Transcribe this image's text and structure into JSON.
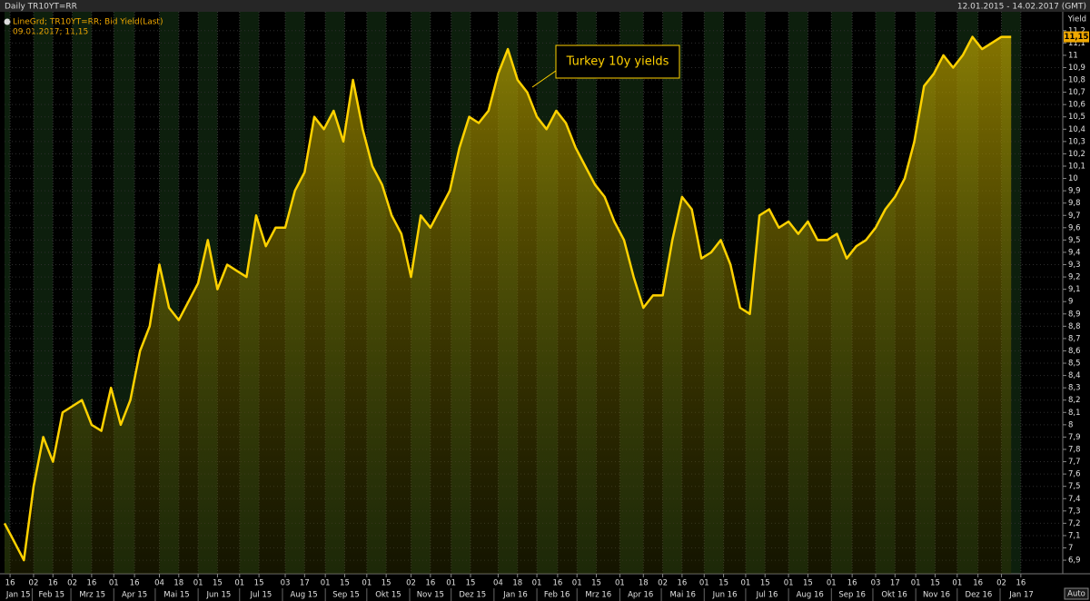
{
  "chart_data": {
    "type": "line",
    "title": "Daily TR10YT=RR",
    "date_range": "12.01.2015 - 14.02.2017 (GMT)",
    "ylabel": "Yield",
    "legend_detail": "09.01.2017; 11,15",
    "last_label": {
      "value": 11.15,
      "label": "11,15"
    },
    "annotation": "Turkey 10y yields",
    "button": "Auto",
    "xlim": [
      "2015-01-12",
      "2017-02-14"
    ],
    "ylim": [
      6.79,
      11.25
    ],
    "grid": true,
    "x": [
      "2015-01-12",
      "2015-01-19",
      "2015-01-26",
      "2015-02-02",
      "2015-02-09",
      "2015-02-16",
      "2015-02-23",
      "2015-03-02",
      "2015-03-09",
      "2015-03-16",
      "2015-03-23",
      "2015-03-30",
      "2015-04-06",
      "2015-04-13",
      "2015-04-20",
      "2015-04-27",
      "2015-05-04",
      "2015-05-11",
      "2015-05-18",
      "2015-05-25",
      "2015-06-01",
      "2015-06-08",
      "2015-06-15",
      "2015-06-22",
      "2015-06-29",
      "2015-07-06",
      "2015-07-13",
      "2015-07-20",
      "2015-07-27",
      "2015-08-03",
      "2015-08-10",
      "2015-08-17",
      "2015-08-24",
      "2015-08-31",
      "2015-09-07",
      "2015-09-14",
      "2015-09-21",
      "2015-09-28",
      "2015-10-05",
      "2015-10-12",
      "2015-10-19",
      "2015-10-26",
      "2015-11-02",
      "2015-11-09",
      "2015-11-16",
      "2015-11-23",
      "2015-11-30",
      "2015-12-07",
      "2015-12-14",
      "2015-12-21",
      "2015-12-28",
      "2016-01-04",
      "2016-01-11",
      "2016-01-18",
      "2016-01-25",
      "2016-02-01",
      "2016-02-08",
      "2016-02-15",
      "2016-02-22",
      "2016-02-29",
      "2016-03-07",
      "2016-03-14",
      "2016-03-21",
      "2016-03-28",
      "2016-04-04",
      "2016-04-11",
      "2016-04-18",
      "2016-04-25",
      "2016-05-02",
      "2016-05-09",
      "2016-05-16",
      "2016-05-23",
      "2016-05-30",
      "2016-06-06",
      "2016-06-13",
      "2016-06-20",
      "2016-06-27",
      "2016-07-04",
      "2016-07-11",
      "2016-07-18",
      "2016-07-25",
      "2016-08-01",
      "2016-08-08",
      "2016-08-15",
      "2016-08-22",
      "2016-08-29",
      "2016-09-05",
      "2016-09-12",
      "2016-09-19",
      "2016-09-26",
      "2016-10-03",
      "2016-10-10",
      "2016-10-17",
      "2016-10-24",
      "2016-10-31",
      "2016-11-07",
      "2016-11-14",
      "2016-11-21",
      "2016-11-28",
      "2016-12-05",
      "2016-12-12",
      "2016-12-19",
      "2016-12-26",
      "2017-01-02",
      "2017-01-09"
    ],
    "series": [
      {
        "name": "LineGrd; TR10YT=RR; Bid Yield(Last)",
        "color": "#ffd200",
        "values": [
          7.2,
          7.05,
          6.9,
          7.5,
          7.9,
          7.7,
          8.1,
          8.15,
          8.2,
          8.0,
          7.95,
          8.3,
          8.0,
          8.2,
          8.6,
          8.8,
          9.3,
          8.95,
          8.85,
          9.0,
          9.15,
          9.5,
          9.1,
          9.3,
          9.25,
          9.2,
          9.7,
          9.45,
          9.6,
          9.6,
          9.9,
          10.05,
          10.5,
          10.4,
          10.55,
          10.3,
          10.8,
          10.4,
          10.1,
          9.95,
          9.7,
          9.55,
          9.2,
          9.7,
          9.6,
          9.75,
          9.9,
          10.25,
          10.5,
          10.45,
          10.55,
          10.85,
          11.05,
          10.8,
          10.7,
          10.5,
          10.4,
          10.55,
          10.45,
          10.25,
          10.1,
          9.95,
          9.85,
          9.65,
          9.5,
          9.2,
          8.95,
          9.05,
          9.05,
          9.5,
          9.85,
          9.75,
          9.35,
          9.4,
          9.5,
          9.3,
          8.95,
          8.9,
          9.7,
          9.75,
          9.6,
          9.65,
          9.55,
          9.65,
          9.5,
          9.5,
          9.55,
          9.35,
          9.45,
          9.5,
          9.6,
          9.75,
          9.85,
          10.0,
          10.3,
          10.75,
          10.85,
          11.0,
          10.9,
          11.0,
          11.15,
          11.05,
          11.1,
          11.15,
          11.15
        ]
      }
    ],
    "yticks": [
      {
        "value": 6.9,
        "label": "6,9"
      },
      7,
      {
        "value": 7.1,
        "label": "7,1"
      },
      {
        "value": 7.2,
        "label": "7,2"
      },
      {
        "value": 7.3,
        "label": "7,3"
      },
      {
        "value": 7.4,
        "label": "7,4"
      },
      {
        "value": 7.5,
        "label": "7,5"
      },
      {
        "value": 7.6,
        "label": "7,6"
      },
      {
        "value": 7.7,
        "label": "7,7"
      },
      {
        "value": 7.8,
        "label": "7,8"
      },
      {
        "value": 7.9,
        "label": "7,9"
      },
      8,
      {
        "value": 8.1,
        "label": "8,1"
      },
      {
        "value": 8.2,
        "label": "8,2"
      },
      {
        "value": 8.3,
        "label": "8,3"
      },
      {
        "value": 8.4,
        "label": "8,4"
      },
      {
        "value": 8.5,
        "label": "8,5"
      },
      {
        "value": 8.6,
        "label": "8,6"
      },
      {
        "value": 8.7,
        "label": "8,7"
      },
      {
        "value": 8.8,
        "label": "8,8"
      },
      {
        "value": 8.9,
        "label": "8,9"
      },
      9,
      {
        "value": 9.1,
        "label": "9,1"
      },
      {
        "value": 9.2,
        "label": "9,2"
      },
      {
        "value": 9.3,
        "label": "9,3"
      },
      {
        "value": 9.4,
        "label": "9,4"
      },
      {
        "value": 9.5,
        "label": "9,5"
      },
      {
        "value": 9.6,
        "label": "9,6"
      },
      {
        "value": 9.7,
        "label": "9,7"
      },
      {
        "value": 9.8,
        "label": "9,8"
      },
      {
        "value": 9.9,
        "label": "9,9"
      },
      10,
      {
        "value": 10.1,
        "label": "10,1"
      },
      {
        "value": 10.2,
        "label": "10,2"
      },
      {
        "value": 10.3,
        "label": "10,3"
      },
      {
        "value": 10.4,
        "label": "10,4"
      },
      {
        "value": 10.5,
        "label": "10,5"
      },
      {
        "value": 10.6,
        "label": "10,6"
      },
      {
        "value": 10.7,
        "label": "10,7"
      },
      {
        "value": 10.8,
        "label": "10,8"
      },
      {
        "value": 10.9,
        "label": "10,9"
      },
      11,
      {
        "value": 11.1,
        "label": "11,1"
      },
      {
        "value": 11.2,
        "label": "11,2"
      }
    ],
    "xticks": [
      {
        "value": "2015-01-16",
        "label": "16"
      },
      {
        "value": "2015-02-02",
        "label": "02"
      },
      {
        "value": "2015-02-16",
        "label": "16"
      },
      {
        "value": "2015-03-02",
        "label": "02"
      },
      {
        "value": "2015-03-16",
        "label": "16"
      },
      {
        "value": "2015-04-01",
        "label": "01"
      },
      {
        "value": "2015-04-16",
        "label": "16"
      },
      {
        "value": "2015-05-04",
        "label": "04"
      },
      {
        "value": "2015-05-18",
        "label": "18"
      },
      {
        "value": "2015-06-01",
        "label": "01"
      },
      {
        "value": "2015-06-15",
        "label": "15"
      },
      {
        "value": "2015-07-01",
        "label": "01"
      },
      {
        "value": "2015-07-15",
        "label": "15"
      },
      {
        "value": "2015-08-03",
        "label": "03"
      },
      {
        "value": "2015-08-17",
        "label": "17"
      },
      {
        "value": "2015-09-01",
        "label": "01"
      },
      {
        "value": "2015-09-15",
        "label": "15"
      },
      {
        "value": "2015-10-01",
        "label": "01"
      },
      {
        "value": "2015-10-15",
        "label": "15"
      },
      {
        "value": "2015-11-02",
        "label": "02"
      },
      {
        "value": "2015-11-16",
        "label": "16"
      },
      {
        "value": "2015-12-01",
        "label": "01"
      },
      {
        "value": "2015-12-15",
        "label": "15"
      },
      {
        "value": "2016-01-04",
        "label": "04"
      },
      {
        "value": "2016-01-18",
        "label": "18"
      },
      {
        "value": "2016-02-01",
        "label": "01"
      },
      {
        "value": "2016-02-16",
        "label": "16"
      },
      {
        "value": "2016-03-01",
        "label": "01"
      },
      {
        "value": "2016-03-15",
        "label": "15"
      },
      {
        "value": "2016-04-01",
        "label": "01"
      },
      {
        "value": "2016-04-18",
        "label": "18"
      },
      {
        "value": "2016-05-02",
        "label": "02"
      },
      {
        "value": "2016-05-16",
        "label": "16"
      },
      {
        "value": "2016-06-01",
        "label": "01"
      },
      {
        "value": "2016-06-15",
        "label": "15"
      },
      {
        "value": "2016-07-01",
        "label": "01"
      },
      {
        "value": "2016-07-15",
        "label": "15"
      },
      {
        "value": "2016-08-01",
        "label": "01"
      },
      {
        "value": "2016-08-15",
        "label": "15"
      },
      {
        "value": "2016-09-01",
        "label": "01"
      },
      {
        "value": "2016-09-16",
        "label": "16"
      },
      {
        "value": "2016-10-03",
        "label": "03"
      },
      {
        "value": "2016-10-17",
        "label": "17"
      },
      {
        "value": "2016-11-01",
        "label": "01"
      },
      {
        "value": "2016-11-15",
        "label": "15"
      },
      {
        "value": "2016-12-01",
        "label": "01"
      },
      {
        "value": "2016-12-16",
        "label": "16"
      },
      {
        "value": "2017-01-02",
        "label": "02"
      },
      {
        "value": "2017-01-16",
        "label": "16"
      }
    ],
    "month_ticks": [
      {
        "value": "2015-01-01",
        "label": "Jan 15"
      },
      {
        "value": "2015-02-01",
        "label": "Feb 15"
      },
      {
        "value": "2015-03-01",
        "label": "Mrz 15"
      },
      {
        "value": "2015-04-01",
        "label": "Apr 15"
      },
      {
        "value": "2015-05-01",
        "label": "Mai 15"
      },
      {
        "value": "2015-06-01",
        "label": "Jun 15"
      },
      {
        "value": "2015-07-01",
        "label": "Jul 15"
      },
      {
        "value": "2015-08-01",
        "label": "Aug 15"
      },
      {
        "value": "2015-09-01",
        "label": "Sep 15"
      },
      {
        "value": "2015-10-01",
        "label": "Okt 15"
      },
      {
        "value": "2015-11-01",
        "label": "Nov 15"
      },
      {
        "value": "2015-12-01",
        "label": "Dez 15"
      },
      {
        "value": "2016-01-01",
        "label": "Jan 16"
      },
      {
        "value": "2016-02-01",
        "label": "Feb 16"
      },
      {
        "value": "2016-03-01",
        "label": "Mrz 16"
      },
      {
        "value": "2016-04-01",
        "label": "Apr 16"
      },
      {
        "value": "2016-05-01",
        "label": "Mai 16"
      },
      {
        "value": "2016-06-01",
        "label": "Jun 16"
      },
      {
        "value": "2016-07-01",
        "label": "Jul 16"
      },
      {
        "value": "2016-08-01",
        "label": "Aug 16"
      },
      {
        "value": "2016-09-01",
        "label": "Sep 16"
      },
      {
        "value": "2016-10-01",
        "label": "Okt 16"
      },
      {
        "value": "2016-11-01",
        "label": "Nov 16"
      },
      {
        "value": "2016-12-01",
        "label": "Dez 16"
      },
      {
        "value": "2017-01-01",
        "label": "Jan 17"
      }
    ]
  }
}
